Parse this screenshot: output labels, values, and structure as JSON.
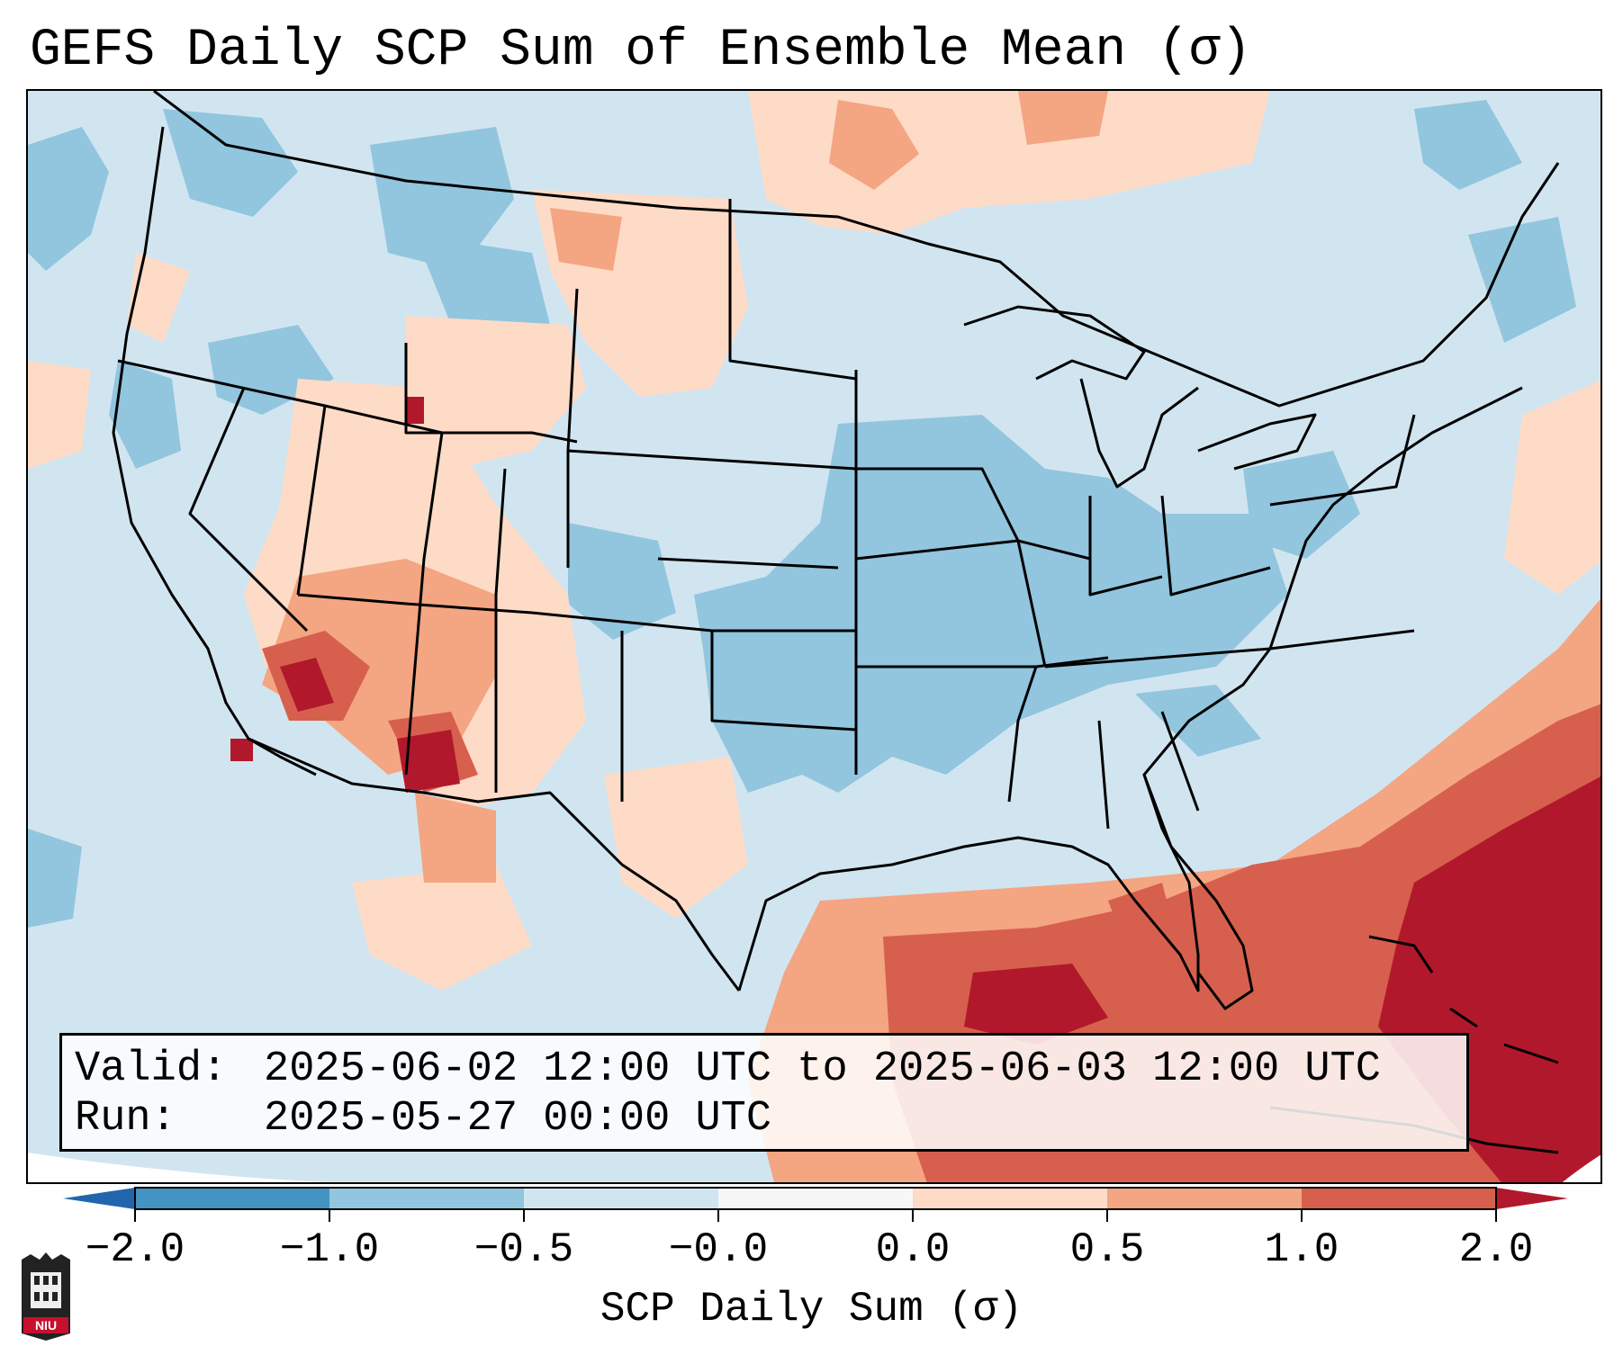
{
  "title": "GEFS Daily SCP Sum of Ensemble Mean (σ)",
  "info": {
    "valid_label": "Valid:",
    "valid_value": "2025-06-02 12:00 UTC to 2025-06-03 12:00 UTC",
    "run_label": "Run:",
    "run_value": "2025-05-27 00:00 UTC"
  },
  "colorbar": {
    "label": "SCP Daily Sum (σ)",
    "ticks": [
      "−2.0",
      "−1.0",
      "−0.5",
      "−0.0",
      "0.0",
      "0.5",
      "1.0",
      "2.0"
    ],
    "colors": [
      "#4393c3",
      "#92c5de",
      "#d1e5f0",
      "#f7f7f7",
      "#fddbc7",
      "#f4a582",
      "#d6604d"
    ],
    "extend_low_color": "#2166ac",
    "extend_high_color": "#b2182b"
  },
  "map": {
    "domain": "Continental United States and surrounding areas",
    "regions": [
      {
        "name": "southwest-high-scp",
        "level": "0.5 to 1.0+"
      },
      {
        "name": "gulf-atlantic-high-scp",
        "level": "1.0 to 2.0+"
      },
      {
        "name": "central-mississippi-valley-low-scp",
        "level": "-1.0 to -0.5"
      },
      {
        "name": "northern-plains-canada-slightly-positive",
        "level": "0.0 to 0.5"
      }
    ]
  },
  "logo": {
    "text": "NIU"
  }
}
